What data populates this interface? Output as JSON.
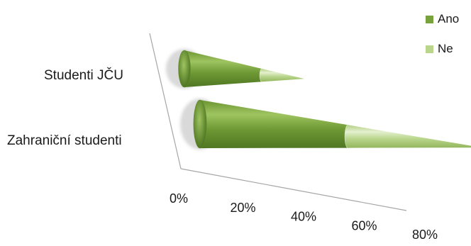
{
  "chart_data": {
    "type": "bar",
    "bar_style": "3d-cone-horizontal",
    "stacking": "percent",
    "categories": [
      "Studenti JČU",
      "Zahraniční studenti"
    ],
    "series": [
      {
        "name": "Ano",
        "color": "#77a23c",
        "values": [
          22,
          42
        ]
      },
      {
        "name": "Ne",
        "color": "#b9d68c",
        "values": [
          12,
          38
        ]
      }
    ],
    "x_ticks": [
      "0%",
      "20%",
      "40%",
      "60%",
      "80%"
    ],
    "xlim": [
      0,
      80
    ],
    "legend_position": "top-right",
    "grid": false
  }
}
